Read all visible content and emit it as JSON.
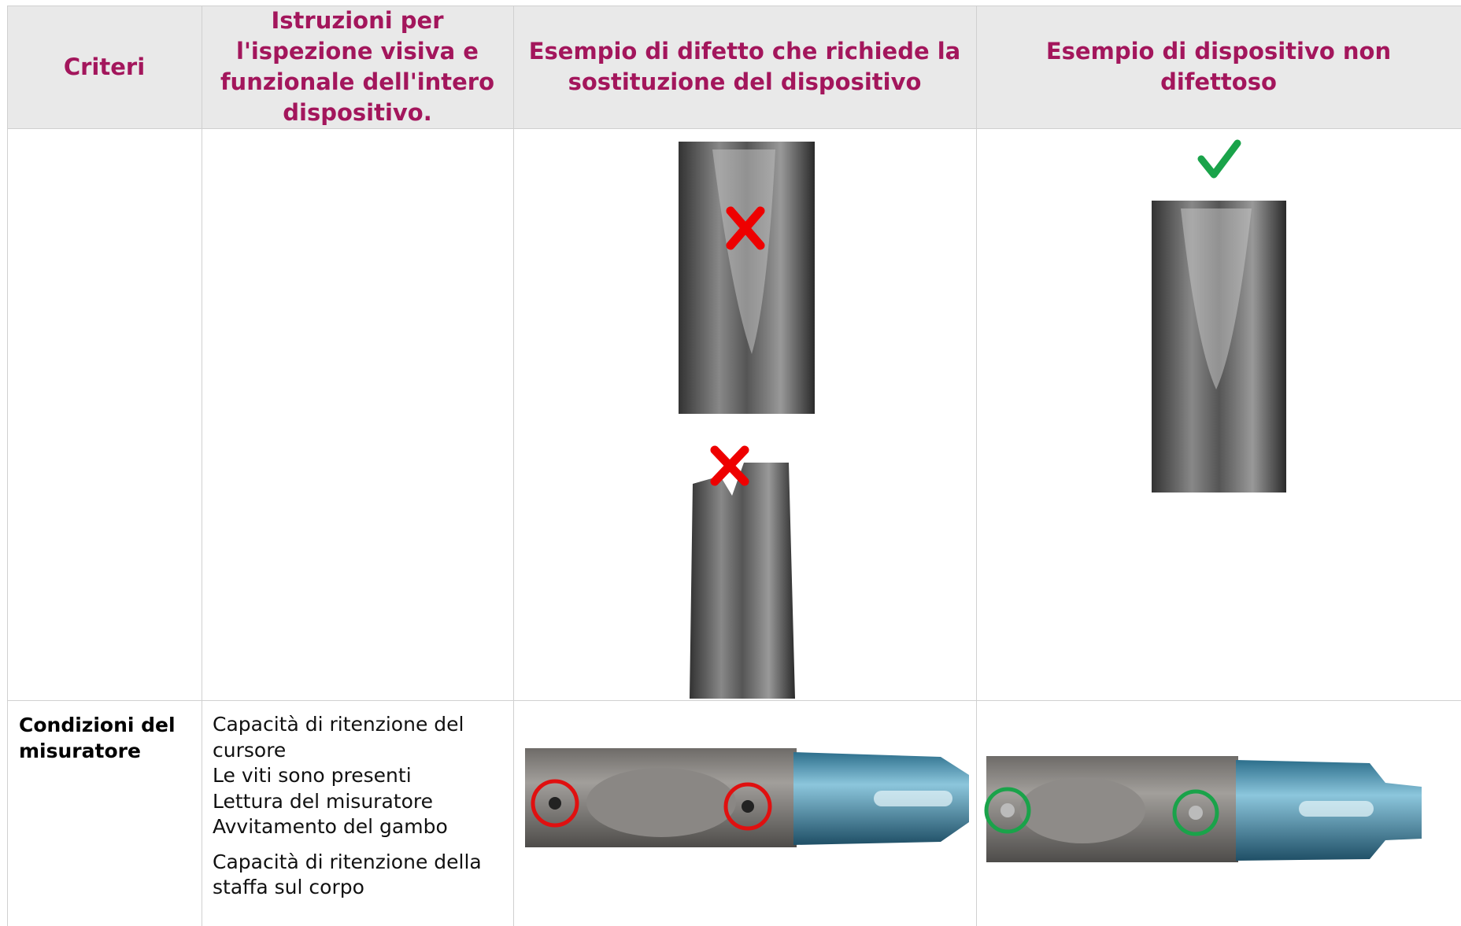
{
  "table": {
    "header": [
      "Criteri",
      "Istruzioni per l'ispezione visiva e funzionale dell'intero dispositivo.",
      "Esempio di difetto che richiede la sostituzione del dispositivo",
      "Esempio di dispositivo non difettoso"
    ],
    "rows": [
      {
        "criterion": "Condizioni del misuratore",
        "instructions": [
          "Capacità di ritenzione del cursore",
          "Le viti sono presenti",
          "Lettura del misuratore",
          "Avvitamento del gambo",
          "Capacità di ritenzione della staffa sul corpo"
        ]
      }
    ]
  }
}
